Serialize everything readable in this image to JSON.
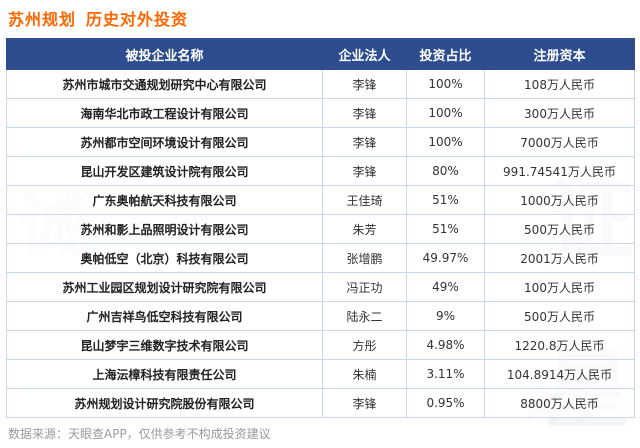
{
  "title": {
    "prefix": "苏州规划",
    "suffix": "历史对外投资"
  },
  "colors": {
    "title": "#ff6600",
    "header_bg": "#2e4d8e",
    "border": "#c9d6ea"
  },
  "table": {
    "headers": [
      "被投企业名称",
      "企业法人",
      "投资占比",
      "注册资本"
    ],
    "rows": [
      [
        "苏州市城市交通规划研究中心有限公司",
        "李锋",
        "100%",
        "108万人民币"
      ],
      [
        "海南华北市政工程设计有限公司",
        "李锋",
        "100%",
        "300万人民币"
      ],
      [
        "苏州都市空间环境设计有限公司",
        "李锋",
        "100%",
        "7000万人民币"
      ],
      [
        "昆山开发区建筑设计院有限公司",
        "李锋",
        "80%",
        "991.74541万人民币"
      ],
      [
        "广东奥帕航天科技有限公司",
        "王佳琦",
        "51%",
        "1000万人民币"
      ],
      [
        "苏州和影上品照明设计有限公司",
        "朱芳",
        "51%",
        "500万人民币"
      ],
      [
        "奥帕低空（北京）科技有限公司",
        "张增鹏",
        "49.97%",
        "2001万人民币"
      ],
      [
        "苏州工业园区规划设计研究院有限公司",
        "冯正功",
        "49%",
        "100万人民币"
      ],
      [
        "广州吉祥鸟低空科技有限公司",
        "陆永二",
        "9%",
        "500万人民币"
      ],
      [
        "昆山梦宇三维数字技术有限公司",
        "方彤",
        "4.98%",
        "1220.8万人民币"
      ],
      [
        "上海沄樟科技有限责任公司",
        "朱楠",
        "3.11%",
        "104.8914万人民币"
      ],
      [
        "苏州规划设计研究院股份有限公司",
        "李锋",
        "0.95%",
        "8800万人民币"
      ]
    ]
  },
  "watermark": {
    "glyph1": "证",
    "glyph2": "星",
    "glyph3": "★",
    "glyph4": "诚"
  },
  "footer": "数据来源：天眼查APP，仅供参考不构成投资建议"
}
